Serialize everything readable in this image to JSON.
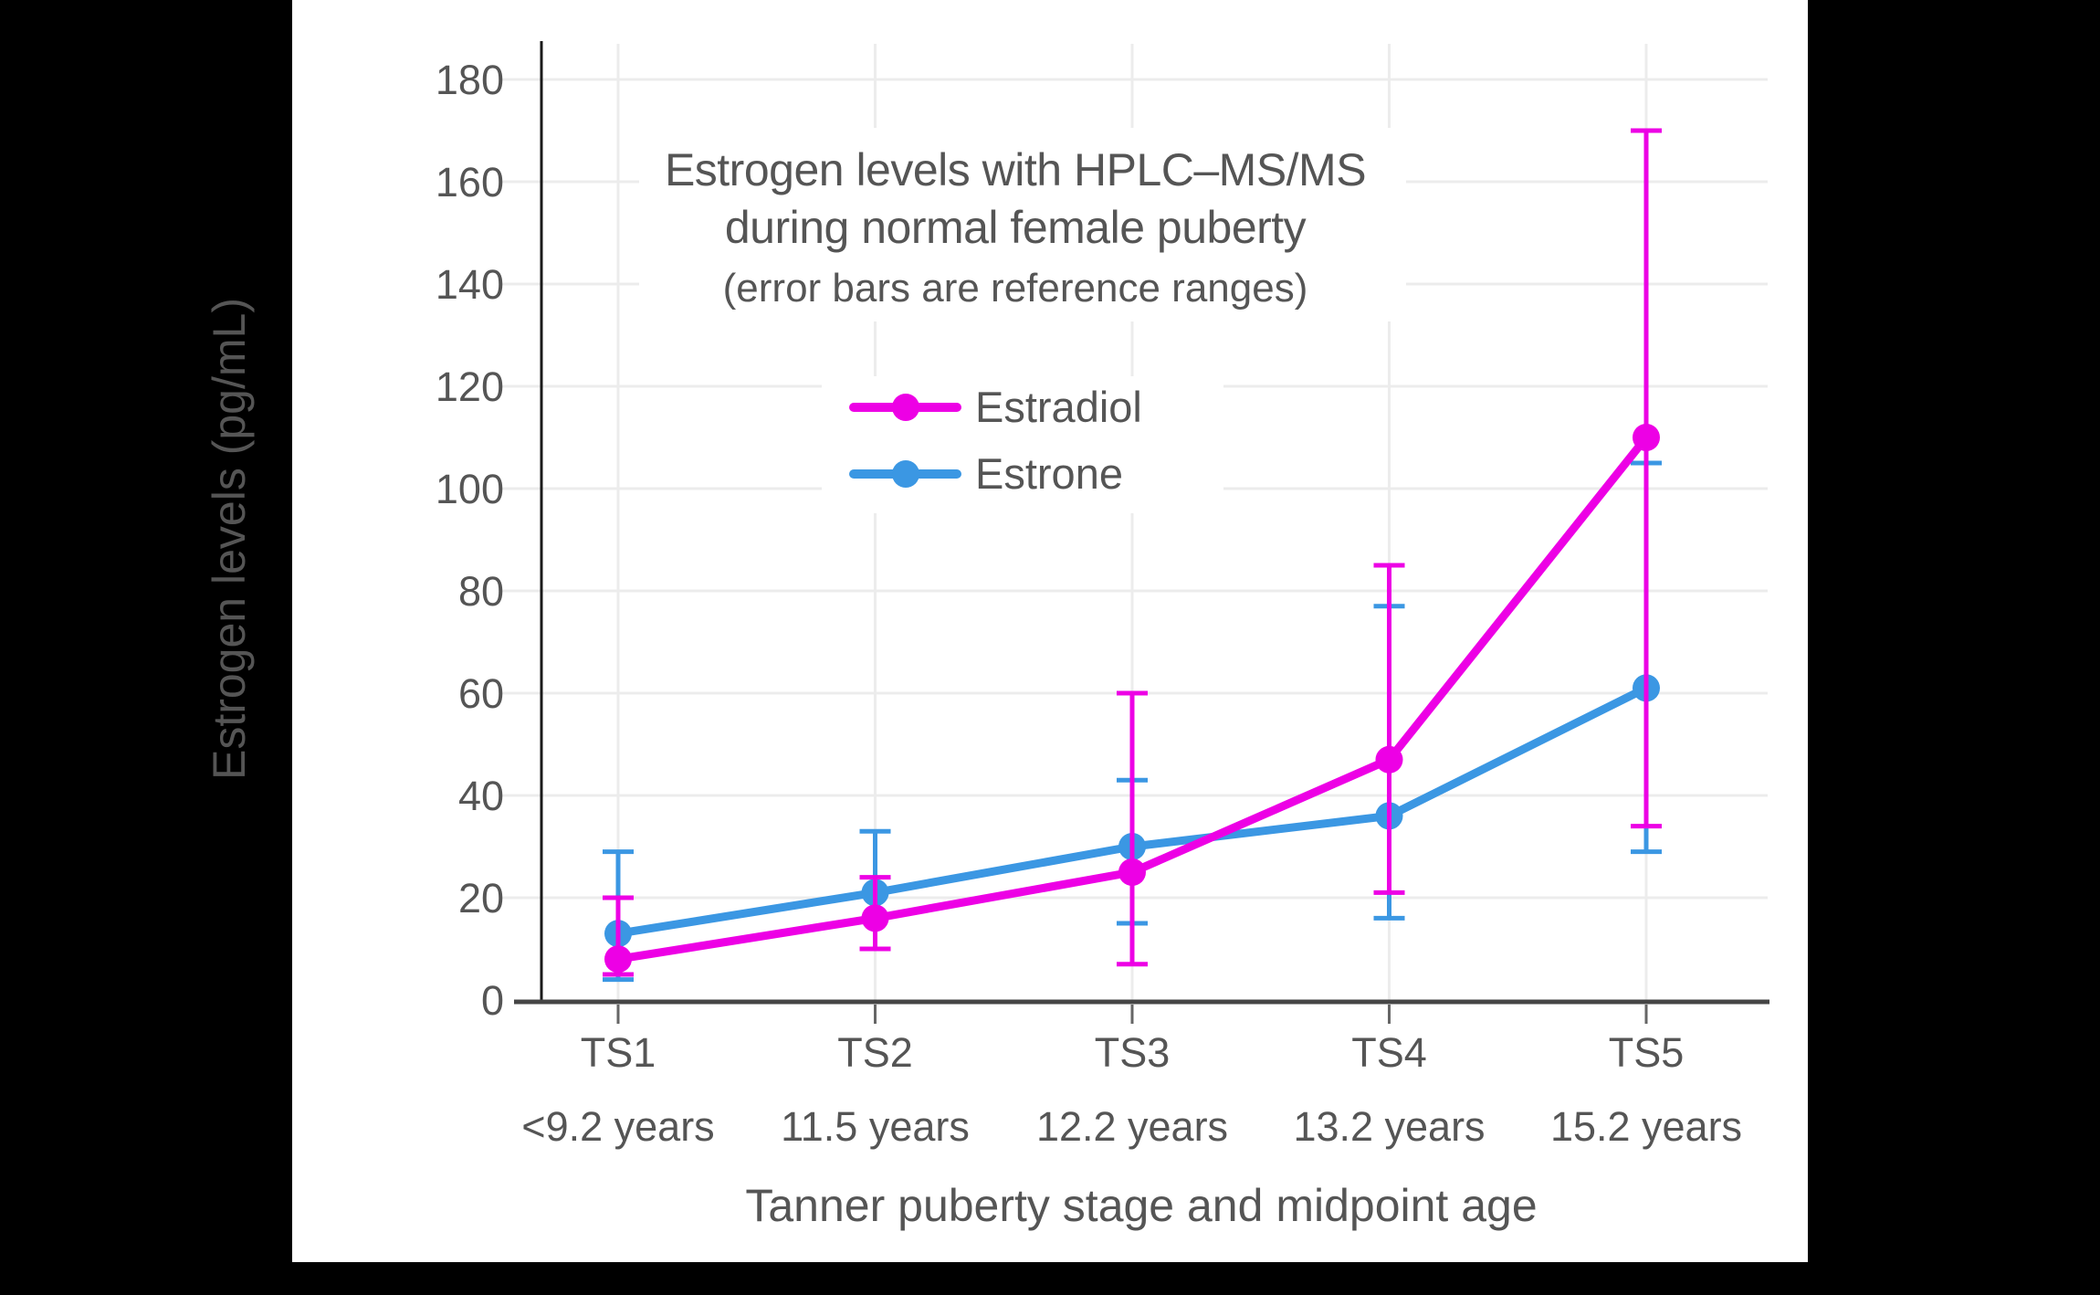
{
  "colors": {
    "background": "#000000",
    "panel": "#ffffff",
    "grid": "#ececec",
    "axis_y": "#1a1a1a",
    "axis_x": "#454545",
    "tick": "#666666",
    "text": "#555555"
  },
  "chart_data": {
    "type": "line",
    "title": "Estrogen levels with HPLC–MS/MS during normal female puberty",
    "title_lines": [
      "Estrogen levels with HPLC–MS/MS",
      "during normal female puberty"
    ],
    "subtitle": "(error bars are reference ranges)",
    "xlabel": "Tanner puberty stage and midpoint age",
    "ylabel": "Estrogen levels (pg/mL)",
    "categories": [
      "TS1",
      "TS2",
      "TS3",
      "TS4",
      "TS5"
    ],
    "category_sublabels": [
      "<9.2 years",
      "11.5 years",
      "12.2 years",
      "13.2 years",
      "15.2 years"
    ],
    "y_ticks": [
      0,
      20,
      40,
      60,
      80,
      100,
      120,
      140,
      160,
      180
    ],
    "ylim": [
      0,
      187
    ],
    "grid": true,
    "error_bar_meaning": "reference ranges",
    "legend_position": "upper-center-inside",
    "series": [
      {
        "name": "Estradiol",
        "color": "#ED00E5",
        "values": [
          8,
          16,
          25,
          47,
          110
        ],
        "error_low": [
          5,
          10,
          7,
          21,
          34
        ],
        "error_high": [
          20,
          24,
          60,
          85,
          170
        ]
      },
      {
        "name": "Estrone",
        "color": "#3B97E3",
        "values": [
          13,
          21,
          30,
          36,
          61
        ],
        "error_low": [
          4,
          10,
          15,
          16,
          29
        ],
        "error_high": [
          29,
          33,
          43,
          77,
          105
        ]
      }
    ]
  }
}
